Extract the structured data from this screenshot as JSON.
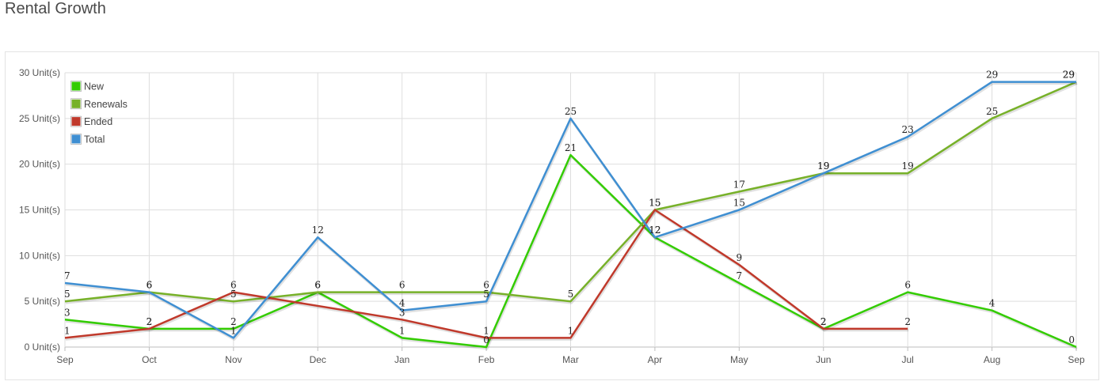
{
  "page": {
    "title": "Rental Growth"
  },
  "chart_data": {
    "type": "line",
    "title": "Rental Growth",
    "x": [
      "Sep",
      "Oct",
      "Nov",
      "Dec",
      "Jan",
      "Feb",
      "Mar",
      "Apr",
      "May",
      "Jun",
      "Jul",
      "Aug",
      "Sep"
    ],
    "y_ticks": [
      "0 Unit(s)",
      "5 Unit(s)",
      "10 Unit(s)",
      "15 Unit(s)",
      "20 Unit(s)",
      "25 Unit(s)",
      "30 Unit(s)"
    ],
    "ylim": [
      0,
      30
    ],
    "grid": true,
    "legend_position": "top-left",
    "series": [
      {
        "name": "New",
        "color": "#33cc00",
        "values": [
          3,
          2,
          2,
          6,
          1,
          0,
          21,
          12,
          7,
          2,
          6,
          4,
          0
        ],
        "labels": [
          "3",
          "2",
          "2",
          "6",
          "1",
          "0",
          "21",
          "12",
          "7",
          "2",
          "6",
          "4",
          "0"
        ]
      },
      {
        "name": "Renewals",
        "color": "#77b129",
        "values": [
          5,
          6,
          5,
          6,
          6,
          6,
          5,
          15,
          17,
          19,
          19,
          25,
          29
        ],
        "labels": [
          "5",
          "6",
          "5",
          "6",
          "6",
          "6",
          "5",
          "15",
          "17",
          "19",
          "19",
          "25",
          "29"
        ]
      },
      {
        "name": "Ended",
        "color": "#c0392b",
        "values": [
          1,
          2,
          6,
          null,
          3,
          1,
          1,
          15,
          9,
          2,
          2,
          null,
          null
        ],
        "labels": [
          "1",
          "2",
          "6",
          "",
          "3",
          "1",
          "1",
          "15",
          "9",
          "2",
          "2",
          "",
          ""
        ]
      },
      {
        "name": "Total",
        "color": "#3f8fd2",
        "values": [
          7,
          6,
          1,
          12,
          4,
          5,
          25,
          12,
          15,
          19,
          23,
          29,
          29
        ],
        "labels": [
          "7",
          "6",
          "1",
          "12",
          "4",
          "5",
          "25",
          "12",
          "15",
          "19",
          "23",
          "29",
          "29"
        ]
      }
    ]
  }
}
